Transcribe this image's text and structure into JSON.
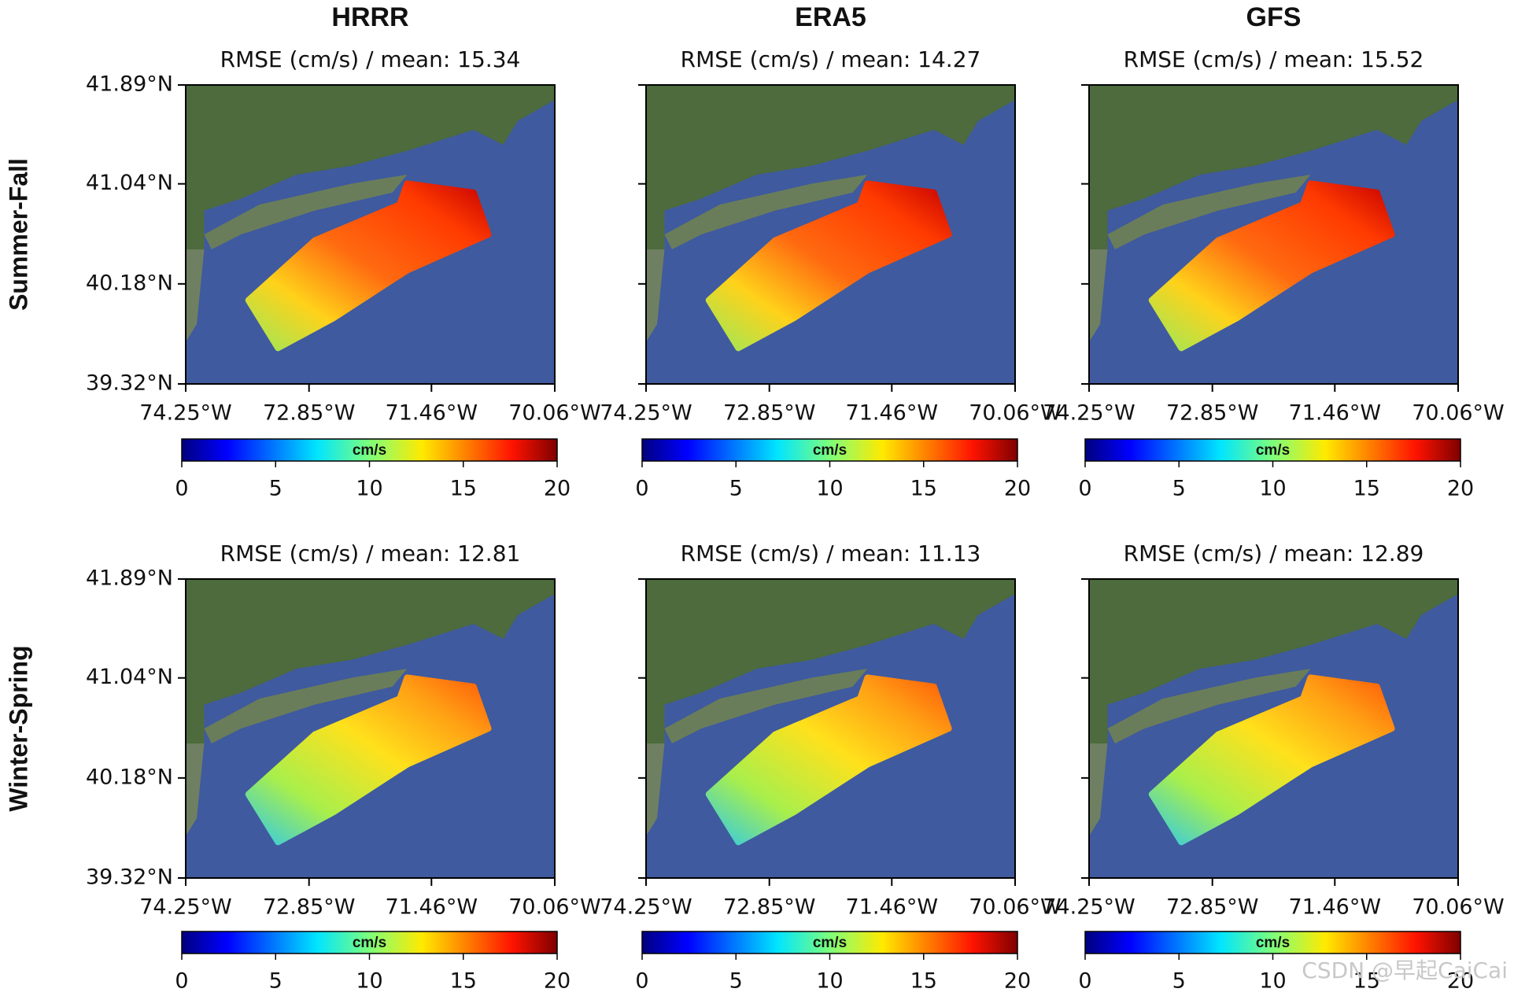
{
  "column_titles": [
    "HRRR",
    "ERA5",
    "GFS"
  ],
  "row_labels": [
    "Summer-Fall",
    "Winter-Spring"
  ],
  "watermark": "CSDN @早起CaiCai",
  "chart_data": [
    {
      "type": "map",
      "title": "RMSE (cm/s) / mean: 15.34",
      "xlim": [
        -74.25,
        -70.06
      ],
      "ylim": [
        39.32,
        41.89
      ],
      "xticks": [
        {
          "value": -74.25,
          "label": "74.25°W"
        },
        {
          "value": -72.85,
          "label": "72.85°W"
        },
        {
          "value": -71.46,
          "label": "71.46°W"
        },
        {
          "value": -70.06,
          "label": "70.06°W"
        }
      ],
      "yticks": [
        {
          "value": 41.89,
          "label": "41.89°N"
        },
        {
          "value": 41.04,
          "label": "41.04°N"
        },
        {
          "value": 40.18,
          "label": "40.18°N"
        },
        {
          "value": 39.32,
          "label": "39.32°N"
        }
      ],
      "colorbar": {
        "label": "cm/s",
        "colormap": "jet",
        "lim": [
          0,
          20
        ],
        "ticks": [
          0,
          5,
          10,
          15,
          20
        ]
      }
    },
    {
      "type": "map",
      "title": "RMSE (cm/s) / mean: 14.27",
      "xlim": [
        -74.25,
        -70.06
      ],
      "ylim": [
        39.32,
        41.89
      ],
      "xticks": [
        {
          "value": -74.25,
          "label": "74.25°W"
        },
        {
          "value": -72.85,
          "label": "72.85°W"
        },
        {
          "value": -71.46,
          "label": "71.46°W"
        },
        {
          "value": -70.06,
          "label": "70.06°W"
        }
      ],
      "yticks": [
        {
          "value": 41.89,
          "label": "41.89°N"
        },
        {
          "value": 41.04,
          "label": "41.04°N"
        },
        {
          "value": 40.18,
          "label": "40.18°N"
        },
        {
          "value": 39.32,
          "label": "39.32°N"
        }
      ],
      "colorbar": {
        "label": "cm/s",
        "colormap": "jet",
        "lim": [
          0,
          20
        ],
        "ticks": [
          0,
          5,
          10,
          15,
          20
        ]
      }
    },
    {
      "type": "map",
      "title": "RMSE (cm/s) / mean: 15.52",
      "xlim": [
        -74.25,
        -70.06
      ],
      "ylim": [
        39.32,
        41.89
      ],
      "xticks": [
        {
          "value": -74.25,
          "label": "74.25°W"
        },
        {
          "value": -72.85,
          "label": "72.85°W"
        },
        {
          "value": -71.46,
          "label": "71.46°W"
        },
        {
          "value": -70.06,
          "label": "70.06°W"
        }
      ],
      "yticks": [
        {
          "value": 41.89,
          "label": "41.89°N"
        },
        {
          "value": 41.04,
          "label": "41.04°N"
        },
        {
          "value": 40.18,
          "label": "40.18°N"
        },
        {
          "value": 39.32,
          "label": "39.32°N"
        }
      ],
      "colorbar": {
        "label": "cm/s",
        "colormap": "jet",
        "lim": [
          0,
          20
        ],
        "ticks": [
          0,
          5,
          10,
          15,
          20
        ]
      }
    },
    {
      "type": "map",
      "title": "RMSE (cm/s) / mean: 12.81",
      "xlim": [
        -74.25,
        -70.06
      ],
      "ylim": [
        39.32,
        41.89
      ],
      "xticks": [
        {
          "value": -74.25,
          "label": "74.25°W"
        },
        {
          "value": -72.85,
          "label": "72.85°W"
        },
        {
          "value": -71.46,
          "label": "71.46°W"
        },
        {
          "value": -70.06,
          "label": "70.06°W"
        }
      ],
      "yticks": [
        {
          "value": 41.89,
          "label": "41.89°N"
        },
        {
          "value": 41.04,
          "label": "41.04°N"
        },
        {
          "value": 40.18,
          "label": "40.18°N"
        },
        {
          "value": 39.32,
          "label": "39.32°N"
        }
      ],
      "colorbar": {
        "label": "cm/s",
        "colormap": "jet",
        "lim": [
          0,
          20
        ],
        "ticks": [
          0,
          5,
          10,
          15,
          20
        ]
      }
    },
    {
      "type": "map",
      "title": "RMSE (cm/s) / mean: 11.13",
      "xlim": [
        -74.25,
        -70.06
      ],
      "ylim": [
        39.32,
        41.89
      ],
      "xticks": [
        {
          "value": -74.25,
          "label": "74.25°W"
        },
        {
          "value": -72.85,
          "label": "72.85°W"
        },
        {
          "value": -71.46,
          "label": "71.46°W"
        },
        {
          "value": -70.06,
          "label": "70.06°W"
        }
      ],
      "yticks": [
        {
          "value": 41.89,
          "label": "41.89°N"
        },
        {
          "value": 41.04,
          "label": "41.04°N"
        },
        {
          "value": 40.18,
          "label": "40.18°N"
        },
        {
          "value": 39.32,
          "label": "39.32°N"
        }
      ],
      "colorbar": {
        "label": "cm/s",
        "colormap": "jet",
        "lim": [
          0,
          20
        ],
        "ticks": [
          0,
          5,
          10,
          15,
          20
        ]
      }
    },
    {
      "type": "map",
      "title": "RMSE (cm/s) / mean: 12.89",
      "xlim": [
        -74.25,
        -70.06
      ],
      "ylim": [
        39.32,
        41.89
      ],
      "xticks": [
        {
          "value": -74.25,
          "label": "74.25°W"
        },
        {
          "value": -72.85,
          "label": "72.85°W"
        },
        {
          "value": -71.46,
          "label": "71.46°W"
        },
        {
          "value": -70.06,
          "label": "70.06°W"
        }
      ],
      "yticks": [
        {
          "value": 41.89,
          "label": "41.89°N"
        },
        {
          "value": 41.04,
          "label": "41.04°N"
        },
        {
          "value": 40.18,
          "label": "40.18°N"
        },
        {
          "value": 39.32,
          "label": "39.32°N"
        }
      ],
      "colorbar": {
        "label": "cm/s",
        "colormap": "jet",
        "lim": [
          0,
          20
        ],
        "ticks": [
          0,
          5,
          10,
          15,
          20
        ]
      }
    }
  ]
}
